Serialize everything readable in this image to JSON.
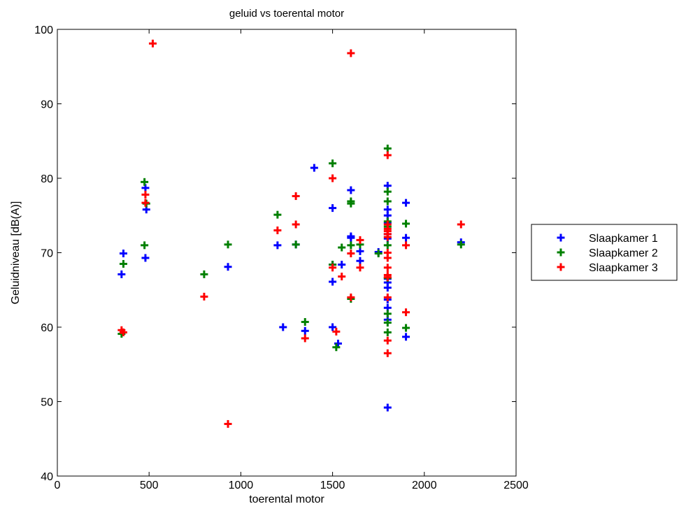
{
  "chart_data": {
    "type": "scatter",
    "title": "geluid vs toerental motor",
    "xlabel": "toerental motor",
    "ylabel": "Geluidniveau [dB(A)]",
    "xlim": [
      0,
      2500
    ],
    "ylim": [
      40,
      100
    ],
    "xticks": [
      0,
      500,
      1000,
      1500,
      2000,
      2500
    ],
    "yticks": [
      40,
      50,
      60,
      70,
      80,
      90,
      100
    ],
    "grid": false,
    "legend_position": "outside-right",
    "marker": "plus",
    "series": [
      {
        "name": "Slaapkamer 1",
        "color": "#0000ff",
        "points": [
          [
            350,
            67.1
          ],
          [
            360,
            69.9
          ],
          [
            480,
            78.7
          ],
          [
            480,
            69.3
          ],
          [
            485,
            75.8
          ],
          [
            930,
            68.1
          ],
          [
            1200,
            71.0
          ],
          [
            1230,
            60.0
          ],
          [
            1300,
            71.1
          ],
          [
            1350,
            59.5
          ],
          [
            1400,
            81.4
          ],
          [
            1500,
            76.0
          ],
          [
            1500,
            68.4
          ],
          [
            1500,
            66.1
          ],
          [
            1500,
            60.0
          ],
          [
            1530,
            57.8
          ],
          [
            1550,
            68.4
          ],
          [
            1600,
            78.4
          ],
          [
            1600,
            72.2
          ],
          [
            1600,
            72.0
          ],
          [
            1650,
            70.2
          ],
          [
            1650,
            68.9
          ],
          [
            1750,
            70.1
          ],
          [
            1800,
            79.0
          ],
          [
            1800,
            75.8
          ],
          [
            1800,
            75.0
          ],
          [
            1800,
            74.0
          ],
          [
            1800,
            72.5
          ],
          [
            1800,
            71.9
          ],
          [
            1800,
            66.5
          ],
          [
            1800,
            66.0
          ],
          [
            1800,
            65.3
          ],
          [
            1800,
            63.7
          ],
          [
            1800,
            62.6
          ],
          [
            1800,
            61.0
          ],
          [
            1800,
            49.2
          ],
          [
            1900,
            76.7
          ],
          [
            1900,
            72.0
          ],
          [
            1900,
            58.7
          ],
          [
            2200,
            71.4
          ]
        ]
      },
      {
        "name": "Slaapkamer 2",
        "color": "#008000",
        "points": [
          [
            350,
            59.1
          ],
          [
            360,
            68.5
          ],
          [
            475,
            79.5
          ],
          [
            475,
            71.0
          ],
          [
            485,
            76.6
          ],
          [
            800,
            67.1
          ],
          [
            930,
            71.1
          ],
          [
            1200,
            75.1
          ],
          [
            1300,
            71.1
          ],
          [
            1350,
            60.7
          ],
          [
            1500,
            82.0
          ],
          [
            1500,
            68.4
          ],
          [
            1520,
            57.3
          ],
          [
            1550,
            70.7
          ],
          [
            1600,
            76.9
          ],
          [
            1600,
            76.6
          ],
          [
            1600,
            71.0
          ],
          [
            1600,
            63.8
          ],
          [
            1650,
            71.1
          ],
          [
            1750,
            69.9
          ],
          [
            1800,
            84.0
          ],
          [
            1800,
            78.2
          ],
          [
            1800,
            76.9
          ],
          [
            1800,
            74.2
          ],
          [
            1800,
            73.5
          ],
          [
            1800,
            71.0
          ],
          [
            1800,
            66.6
          ],
          [
            1800,
            61.8
          ],
          [
            1800,
            60.6
          ],
          [
            1800,
            59.3
          ],
          [
            1900,
            73.9
          ],
          [
            1900,
            59.9
          ],
          [
            2200,
            71.1
          ]
        ]
      },
      {
        "name": "Slaapkamer 3",
        "color": "#ff0000",
        "points": [
          [
            350,
            59.6
          ],
          [
            360,
            59.3
          ],
          [
            480,
            77.8
          ],
          [
            480,
            76.7
          ],
          [
            520,
            98.1
          ],
          [
            800,
            64.1
          ],
          [
            930,
            47.0
          ],
          [
            1200,
            73.0
          ],
          [
            1300,
            77.6
          ],
          [
            1300,
            73.8
          ],
          [
            1350,
            58.5
          ],
          [
            1500,
            80.0
          ],
          [
            1500,
            68.0
          ],
          [
            1520,
            59.4
          ],
          [
            1550,
            66.8
          ],
          [
            1600,
            96.8
          ],
          [
            1600,
            69.9
          ],
          [
            1600,
            64.0
          ],
          [
            1650,
            71.7
          ],
          [
            1650,
            68.0
          ],
          [
            1800,
            83.1
          ],
          [
            1800,
            73.8
          ],
          [
            1800,
            73.2
          ],
          [
            1800,
            72.9
          ],
          [
            1800,
            72.5
          ],
          [
            1800,
            72.1
          ],
          [
            1800,
            70.0
          ],
          [
            1800,
            69.3
          ],
          [
            1800,
            68.0
          ],
          [
            1800,
            67.0
          ],
          [
            1800,
            66.7
          ],
          [
            1800,
            64.0
          ],
          [
            1800,
            58.2
          ],
          [
            1800,
            56.5
          ],
          [
            1900,
            71.0
          ],
          [
            1900,
            62.0
          ],
          [
            2200,
            73.8
          ]
        ]
      }
    ]
  }
}
